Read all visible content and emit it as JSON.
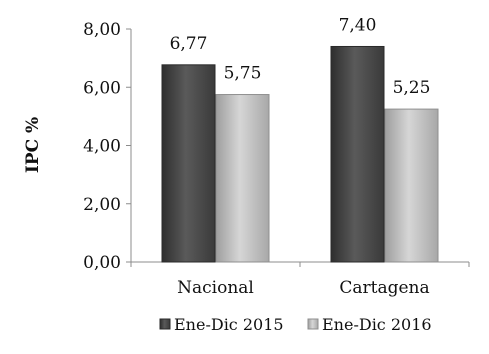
{
  "chart_data": {
    "type": "bar",
    "title": "",
    "xlabel": "",
    "ylabel": "IPC %",
    "ylim": [
      0,
      8
    ],
    "yticks": [
      "0,00",
      "2,00",
      "4,00",
      "6,00",
      "8,00"
    ],
    "ytick_values": [
      0,
      2,
      4,
      6,
      8
    ],
    "categories": [
      "Nacional",
      "Cartagena"
    ],
    "series": [
      {
        "name": "Ene-Dic 2015",
        "values": [
          6.77,
          7.4
        ],
        "labels": [
          "6,77",
          "7,40"
        ],
        "color": "#4a4a4a"
      },
      {
        "name": "Ene-Dic 2016",
        "values": [
          5.75,
          5.25
        ],
        "labels": [
          "5,75",
          "5,25"
        ],
        "color": "#bdbdbd"
      }
    ],
    "grid": false,
    "legend_position": "bottom"
  }
}
